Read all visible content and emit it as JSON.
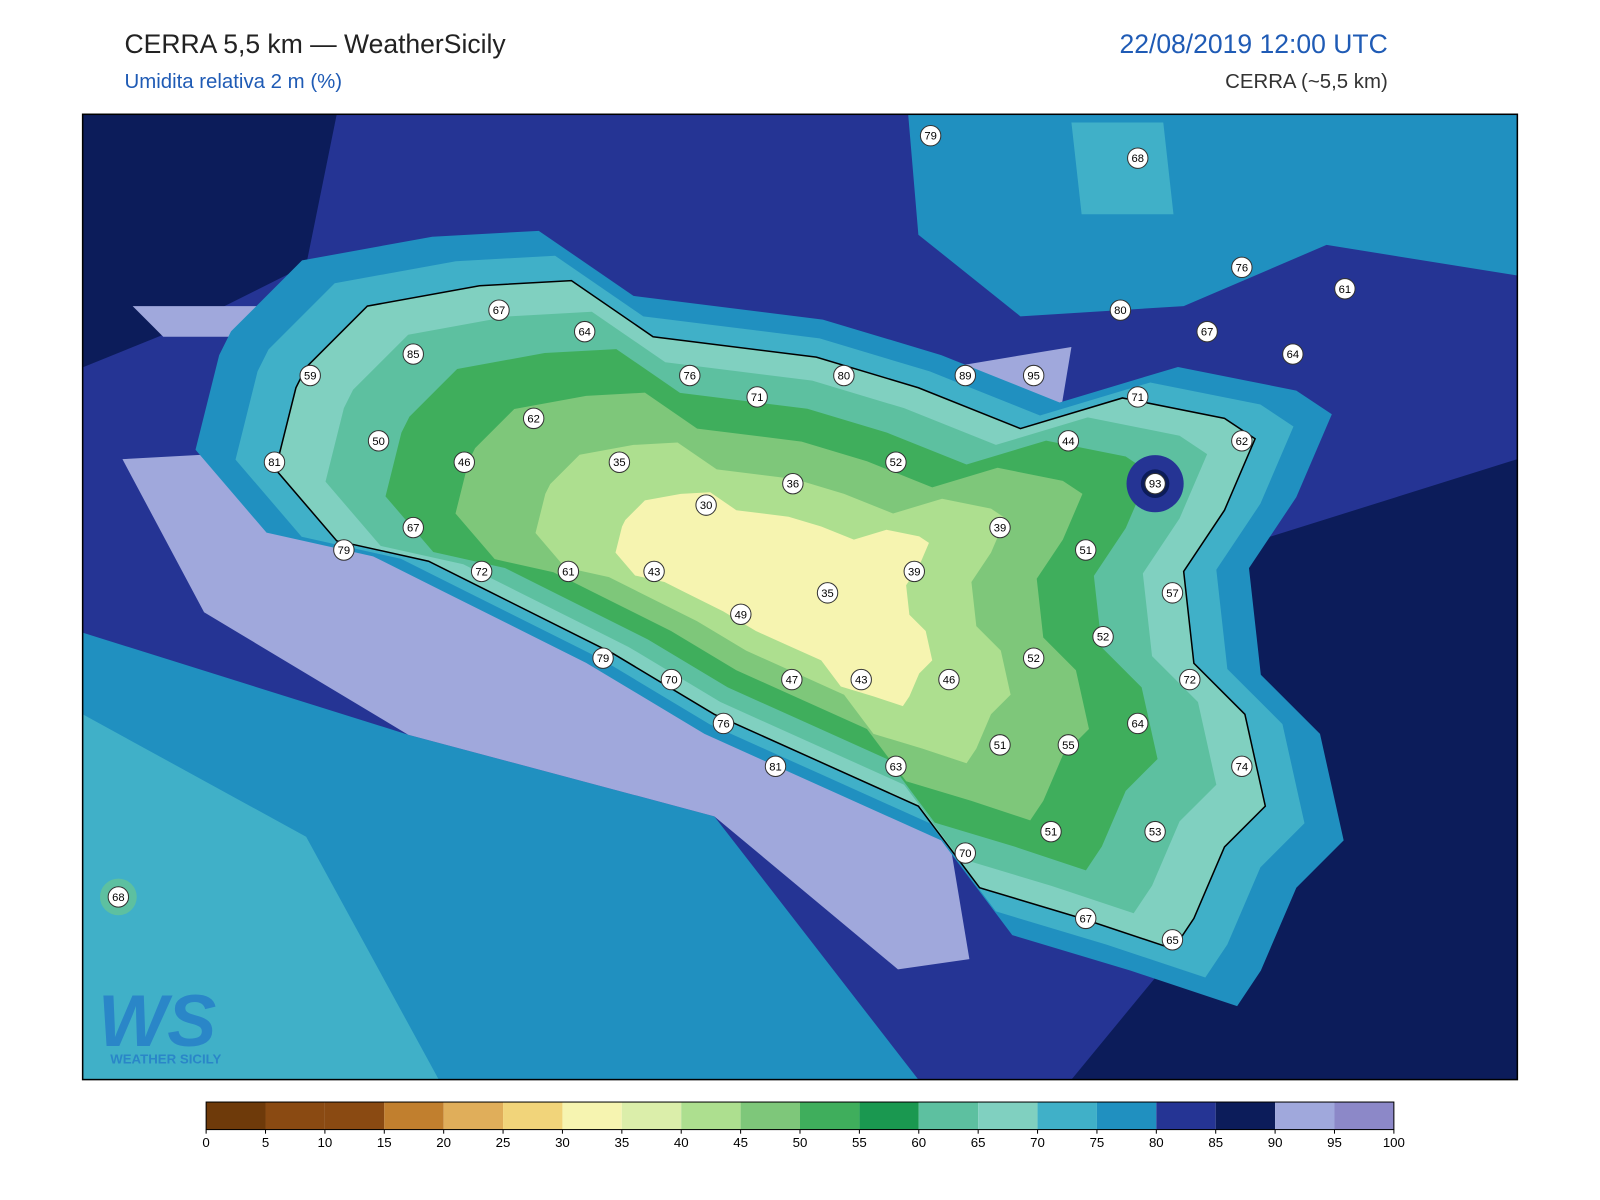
{
  "header": {
    "title": "CERRA 5,5 km — WeatherSicily",
    "subtitle": "Umidita relativa 2 m (%)",
    "datetime": "22/08/2019 12:00 UTC",
    "model": "CERRA (~5,5 km)"
  },
  "map": {
    "stations": [
      79,
      68,
      67,
      64,
      85,
      59,
      76,
      80,
      89,
      95,
      71,
      80,
      76,
      61,
      67,
      64,
      71,
      62,
      50,
      46,
      81,
      35,
      44,
      62,
      52,
      36,
      93,
      30,
      67,
      39,
      79,
      51,
      72,
      61,
      43,
      39,
      35,
      57,
      49,
      52,
      79,
      52,
      70,
      47,
      43,
      46,
      72,
      76,
      64,
      51,
      55,
      81,
      63,
      74,
      51,
      53,
      70,
      68,
      67,
      65
    ]
  },
  "colorbar": {
    "ticks": [
      0,
      5,
      10,
      15,
      20,
      25,
      30,
      35,
      40,
      45,
      50,
      55,
      60,
      65,
      70,
      75,
      80,
      85,
      90,
      95,
      100
    ],
    "colors": [
      "#6e3a0a",
      "#8a4a12",
      "#8a4a12",
      "#c17f2e",
      "#e0ae5a",
      "#f1d47a",
      "#f6f4b0",
      "#dbeeaa",
      "#addf8f",
      "#7ec77a",
      "#3fae5c",
      "#1a9850",
      "#5dc0a0",
      "#80d0c0",
      "#40b0c8",
      "#2090c0",
      "#253494",
      "#0c1c5a",
      "#a0a8dc",
      "#8c88c8"
    ]
  },
  "logo": {
    "text": "WS",
    "caption": "WEATHER SICILY"
  }
}
